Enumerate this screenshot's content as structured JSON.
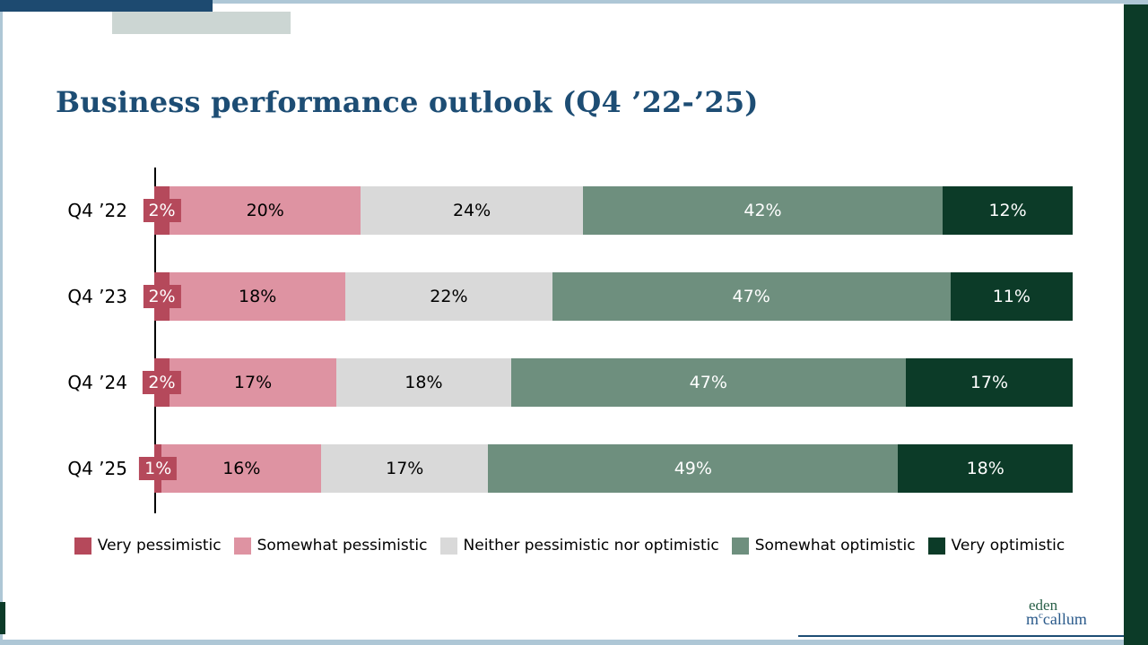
{
  "page": {
    "title": "Business performance outlook (Q4 ’22-’25)"
  },
  "colors": {
    "accent_navy": "#1d4d74",
    "page_border_blue": "#aec7d6",
    "top_bar_navy": "#1d4a70",
    "top_bar_gray": "#ccd6d3",
    "side_strip_green": "#0c3b28",
    "axis_black": "#000000",
    "logo_green": "#2a6049",
    "logo_blue": "#29598a"
  },
  "chart_data": {
    "type": "bar",
    "variant": "horizontal-stacked",
    "title": "Business performance outlook (Q4 ’22-’25)",
    "categories": [
      "Q4 ’22",
      "Q4 ’23",
      "Q4 ’24",
      "Q4 ’25"
    ],
    "series": [
      {
        "name": "Very pessimistic",
        "color": "#b5495b",
        "text_color": "#ffffff",
        "values": [
          2,
          2,
          2,
          1
        ]
      },
      {
        "name": "Somewhat pessimistic",
        "color": "#de93a2",
        "text_color": "#000000",
        "values": [
          20,
          18,
          17,
          16
        ]
      },
      {
        "name": "Neither pessimistic nor optimistic",
        "color": "#d9d9d9",
        "text_color": "#000000",
        "values": [
          24,
          22,
          18,
          17
        ]
      },
      {
        "name": "Somewhat optimistic",
        "color": "#6e8f7e",
        "text_color": "#ffffff",
        "values": [
          42,
          47,
          47,
          49
        ]
      },
      {
        "name": "Very optimistic",
        "color": "#0c3b28",
        "text_color": "#ffffff",
        "values": [
          12,
          11,
          17,
          18
        ]
      }
    ],
    "value_suffix": "%",
    "xlim": [
      0,
      100
    ],
    "grid": false,
    "legend_position": "bottom"
  },
  "logo": {
    "line1": "eden",
    "line2_pre": "m",
    "line2_sup": "c",
    "line2_rest": "callum"
  }
}
